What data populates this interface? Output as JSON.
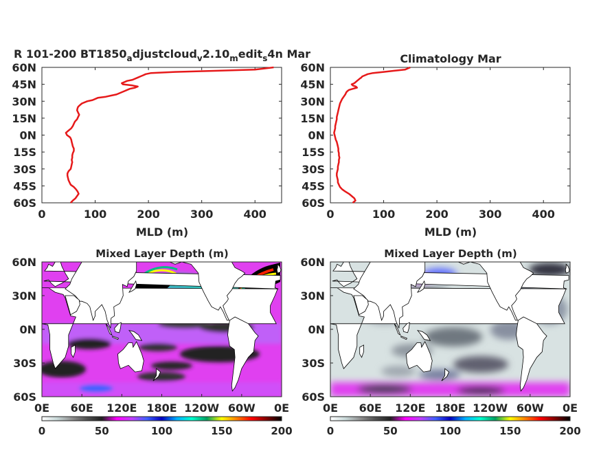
{
  "chart_data": [
    {
      "type": "line",
      "title": "R 101-200 BT1850",
      "title_sub_1": "a",
      "title_mid_1": "djustcloud",
      "title_sub_2": "v",
      "title_mid_2": "2.10",
      "title_sub_3": "m",
      "title_mid_3": "edit",
      "title_sub_4": "s",
      "title_end": "4n Mar",
      "xlabel": "MLD (m)",
      "ylabel": "",
      "xlim": [
        0,
        450
      ],
      "ylim": [
        -60,
        60
      ],
      "x_ticks": [
        "0",
        "100",
        "200",
        "300",
        "400"
      ],
      "y_ticks": [
        "60N",
        "45N",
        "30N",
        "15N",
        "0N",
        "15S",
        "30S",
        "45S",
        "60S"
      ],
      "line_color": "#e6191a",
      "series": [
        {
          "y": [
            60,
            58,
            57,
            56,
            55,
            54,
            53,
            52,
            51,
            49,
            48,
            46,
            45,
            44,
            43,
            42,
            41,
            40,
            39,
            38,
            36,
            35,
            34,
            33,
            31,
            30,
            28,
            26,
            25,
            24,
            22,
            20,
            18,
            16,
            14,
            12,
            10,
            8,
            6,
            4,
            2,
            0,
            -2,
            -4,
            -6,
            -8,
            -10,
            -12,
            -14,
            -16,
            -18,
            -20,
            -22,
            -24,
            -26,
            -28,
            -30,
            -32,
            -34,
            -36,
            -38,
            -40,
            -42,
            -44,
            -46,
            -48,
            -50,
            -52,
            -54,
            -56,
            -58,
            -60
          ],
          "x": [
            435,
            400,
            330,
            250,
            205,
            195,
            190,
            185,
            180,
            170,
            160,
            150,
            152,
            170,
            180,
            175,
            165,
            160,
            155,
            150,
            140,
            130,
            120,
            105,
            95,
            85,
            75,
            70,
            68,
            67,
            66,
            68,
            70,
            68,
            66,
            62,
            60,
            58,
            55,
            50,
            45,
            47,
            53,
            55,
            56,
            57,
            58,
            60,
            60,
            58,
            57,
            57,
            56,
            57,
            56,
            55,
            54,
            50,
            48,
            48,
            49,
            50,
            52,
            54,
            60,
            64,
            67,
            69,
            66,
            63,
            58,
            54
          ]
        }
      ]
    },
    {
      "type": "line",
      "title": "Climatology Mar",
      "xlabel": "MLD (m)",
      "ylabel": "",
      "xlim": [
        0,
        450
      ],
      "ylim": [
        -60,
        60
      ],
      "x_ticks": [
        "0",
        "100",
        "200",
        "300",
        "400"
      ],
      "y_ticks": [
        "60N",
        "45N",
        "30N",
        "15N",
        "0N",
        "15S",
        "30S",
        "45S",
        "60S"
      ],
      "line_color": "#e6191a",
      "series": [
        {
          "y": [
            60,
            58,
            57,
            56,
            55,
            54,
            53,
            52,
            51,
            50,
            48,
            46,
            45,
            44,
            43,
            42,
            41,
            40,
            39,
            38,
            36,
            34,
            32,
            30,
            28,
            26,
            24,
            22,
            20,
            18,
            16,
            14,
            12,
            10,
            8,
            6,
            4,
            2,
            0,
            -2,
            -4,
            -6,
            -8,
            -10,
            -12,
            -14,
            -16,
            -18,
            -20,
            -22,
            -24,
            -26,
            -28,
            -30,
            -32,
            -34,
            -36,
            -38,
            -40,
            -42,
            -44,
            -46,
            -48,
            -50,
            -52,
            -54,
            -56,
            -58,
            -60
          ],
          "x": [
            150,
            140,
            120,
            100,
            80,
            70,
            65,
            60,
            58,
            55,
            50,
            45,
            40,
            42,
            48,
            50,
            42,
            35,
            32,
            30,
            28,
            25,
            22,
            20,
            18,
            17,
            16,
            15,
            14,
            13,
            12,
            12,
            11,
            10,
            9,
            9,
            8,
            7,
            8,
            9,
            10,
            12,
            13,
            14,
            15,
            15,
            16,
            16,
            17,
            16,
            16,
            15,
            14,
            14,
            13,
            12,
            12,
            13,
            14,
            14,
            16,
            18,
            22,
            28,
            35,
            40,
            45,
            47,
            42
          ]
        }
      ]
    },
    {
      "type": "heatmap",
      "title": "Mixed Layer Depth (m)",
      "x_ticks": [
        "0E",
        "60E",
        "120E",
        "180E",
        "120W",
        "60W",
        "0E"
      ],
      "y_ticks": [
        "60N",
        "30N",
        "0N",
        "30S",
        "60S"
      ],
      "xlim": [
        0,
        360
      ],
      "ylim": [
        -60,
        60
      ],
      "colorbar_ticks": [
        "0",
        "50",
        "100",
        "150",
        "200"
      ],
      "colorbar_range": [
        0,
        200
      ],
      "colormap": [
        "#ffffff",
        "#c8d8d8",
        "#909090",
        "#505050",
        "#202020",
        "#ff00ff",
        "#c040ff",
        "#4060ff",
        "#0000c0",
        "#00b0ff",
        "#00ffd0",
        "#00a060",
        "#ffff00",
        "#ff8000",
        "#ff0000",
        "#800000",
        "#000000"
      ]
    },
    {
      "type": "heatmap",
      "title": "Mixed Layer Depth (m)",
      "x_ticks": [
        "0E",
        "60E",
        "120E",
        "180E",
        "120W",
        "60W",
        "0E"
      ],
      "y_ticks": [
        "60N",
        "30N",
        "0N",
        "30S",
        "60S"
      ],
      "xlim": [
        0,
        360
      ],
      "ylim": [
        -60,
        60
      ],
      "colorbar_ticks": [
        "0",
        "50",
        "100",
        "150",
        "200"
      ],
      "colorbar_range": [
        0,
        200
      ],
      "colormap": [
        "#ffffff",
        "#c8d8d8",
        "#909090",
        "#505050",
        "#202020",
        "#ff00ff",
        "#c040ff",
        "#4060ff",
        "#0000c0",
        "#00b0ff",
        "#00ffd0",
        "#00a060",
        "#ffff00",
        "#ff8000",
        "#ff0000",
        "#800000",
        "#000000"
      ]
    }
  ]
}
